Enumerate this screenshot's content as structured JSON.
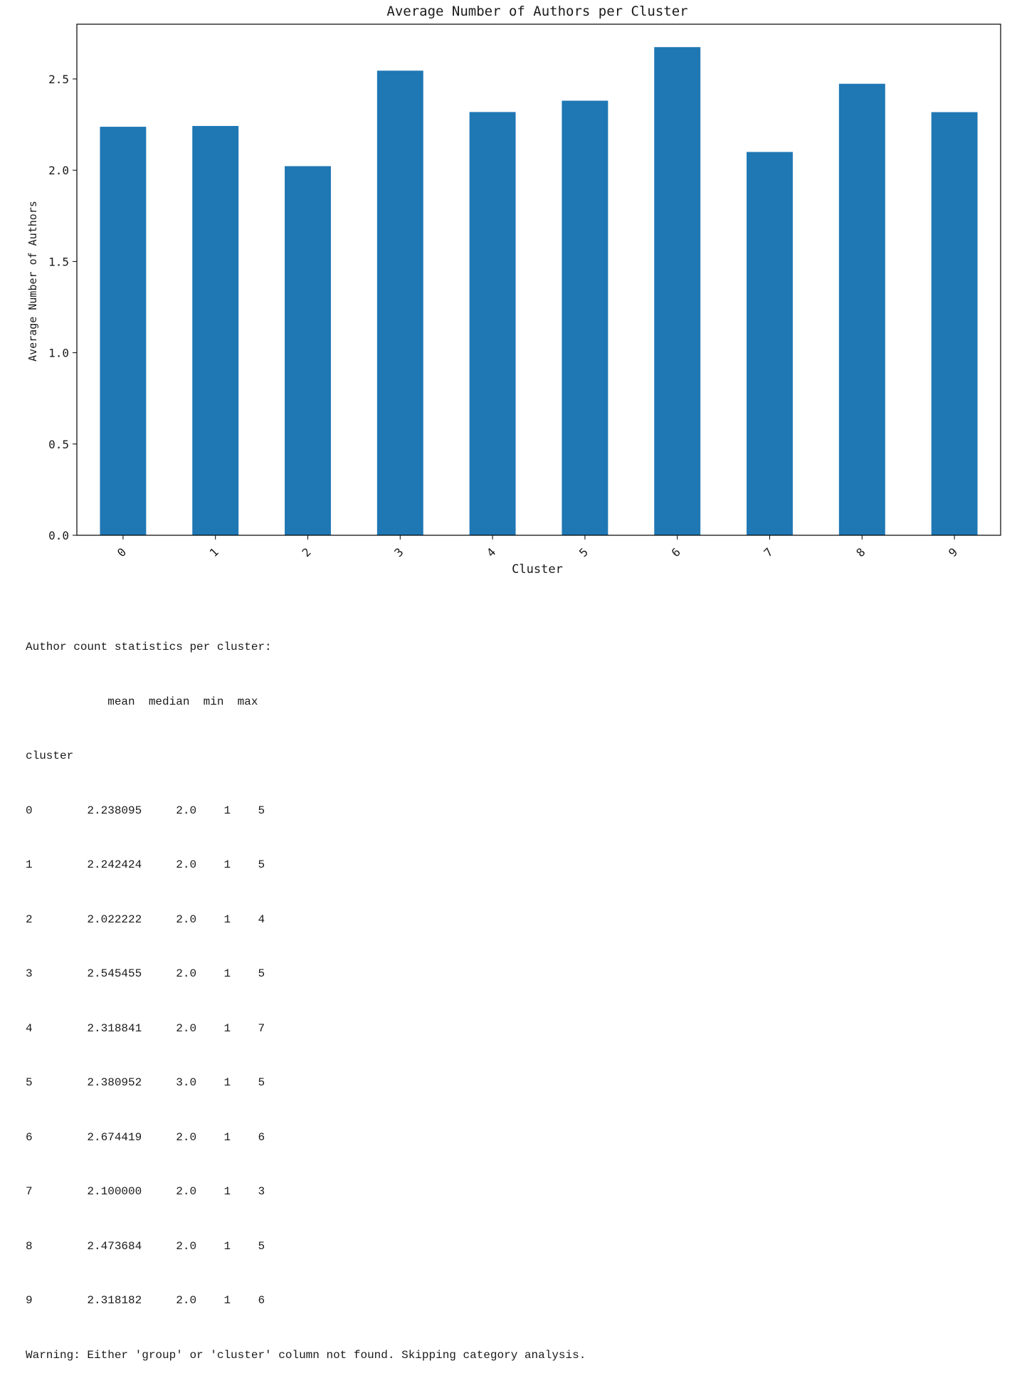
{
  "chart_data": {
    "type": "bar",
    "title": "Average Number of Authors per Cluster",
    "xlabel": "Cluster",
    "ylabel": "Average Number of Authors",
    "categories": [
      "0",
      "1",
      "2",
      "3",
      "4",
      "5",
      "6",
      "7",
      "8",
      "9"
    ],
    "values": [
      2.238095,
      2.242424,
      2.022222,
      2.545455,
      2.318841,
      2.380952,
      2.674419,
      2.1,
      2.473684,
      2.318182
    ],
    "ylim": [
      0,
      2.8
    ],
    "yticks": [
      "0.0",
      "0.5",
      "1.0",
      "1.5",
      "2.0",
      "2.5"
    ],
    "ytick_values": [
      0,
      0.5,
      1.0,
      1.5,
      2.0,
      2.5
    ],
    "bar_color": "#1f77b4",
    "grid": false,
    "legend": "none",
    "xtick_rotation_deg": 45
  },
  "console": {
    "heading": "Author count statistics per cluster:",
    "column_header": "            mean  median  min  max",
    "index_name": "cluster",
    "rows": [
      "0        2.238095     2.0    1    5",
      "1        2.242424     2.0    1    5",
      "2        2.022222     2.0    1    4",
      "3        2.545455     2.0    1    5",
      "4        2.318841     2.0    1    7",
      "5        2.380952     3.0    1    5",
      "6        2.674419     2.0    1    6",
      "7        2.100000     2.0    1    3",
      "8        2.473684     2.0    1    5",
      "9        2.318182     2.0    1    6"
    ],
    "warning": "Warning: Either 'group' or 'cluster' column not found. Skipping category analysis."
  }
}
